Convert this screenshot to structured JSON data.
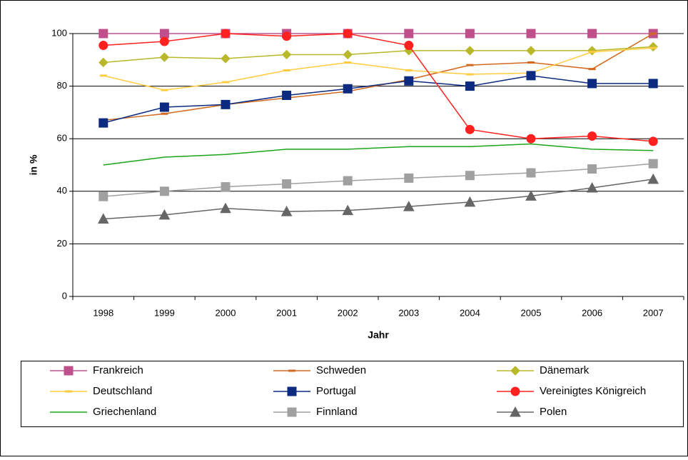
{
  "chart_data": {
    "type": "line",
    "y_label": "in %",
    "x_label": "Jahr",
    "categories": [
      "1998",
      "1999",
      "2000",
      "2001",
      "2002",
      "2003",
      "2004",
      "2005",
      "2006",
      "2007"
    ],
    "ylim": [
      0,
      100
    ],
    "yticks": [
      0,
      20,
      40,
      60,
      80,
      100
    ],
    "grid": true,
    "legend": "bottom",
    "series": [
      {
        "name": "Frankreich",
        "color": "#c0508c",
        "marker": "square",
        "values": [
          100,
          100,
          100,
          100,
          100,
          100,
          100,
          100,
          100,
          100
        ]
      },
      {
        "name": "Schweden",
        "color": "#d2691e",
        "marker": "dash",
        "values": [
          67,
          69.5,
          73,
          75.5,
          78,
          82.5,
          88,
          89,
          86.5,
          100
        ]
      },
      {
        "name": "Dänemark",
        "color": "#b8b82a",
        "marker": "diamond",
        "values": [
          89,
          91,
          90.5,
          92,
          92,
          93.5,
          93.5,
          93.5,
          93.5,
          95
        ]
      },
      {
        "name": "Deutschland",
        "color": "#ffcc40",
        "marker": "dash",
        "values": [
          84,
          78.5,
          81.5,
          86,
          89,
          86,
          84.5,
          85,
          93,
          94.5
        ]
      },
      {
        "name": "Portugal",
        "color": "#0c2a80",
        "marker": "square",
        "values": [
          66,
          72,
          73,
          76.5,
          79,
          82,
          80,
          84,
          81,
          81
        ]
      },
      {
        "name": "Vereinigtes Königreich",
        "color": "#ff2020",
        "marker": "circle",
        "values": [
          95.5,
          97,
          100,
          99,
          100,
          95.5,
          63.5,
          60,
          61,
          59
        ]
      },
      {
        "name": "Griechenland",
        "color": "#1aa51a",
        "marker": "none",
        "values": [
          50,
          53,
          54,
          56,
          56,
          57,
          57,
          58,
          56,
          55.5
        ]
      },
      {
        "name": "Finnland",
        "color": "#a0a0a0",
        "marker": "square",
        "values": [
          38,
          40,
          41.7,
          42.8,
          44,
          45,
          46,
          47,
          48.5,
          50.5
        ]
      },
      {
        "name": "Polen",
        "color": "#666666",
        "marker": "triangle",
        "values": [
          29.5,
          31,
          33.5,
          32.3,
          32.7,
          34.2,
          35.9,
          38.2,
          41.3,
          44.6
        ]
      }
    ]
  }
}
